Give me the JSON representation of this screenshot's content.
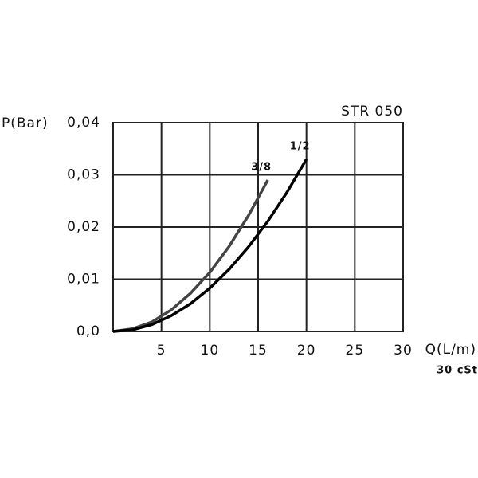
{
  "chart_data": {
    "type": "line",
    "title": "STR 050",
    "subtitle": "30 cSt",
    "y_label": "P(Bar)",
    "x_label": "Q(L/m)",
    "xlim": [
      0,
      30
    ],
    "xticks": [
      5,
      10,
      15,
      20,
      25,
      30
    ],
    "ylim": [
      0,
      0.04
    ],
    "yticks": [
      {
        "value": 0,
        "label": "0,0"
      },
      {
        "value": 0.01,
        "label": "0,01"
      },
      {
        "value": 0.02,
        "label": "0,02"
      },
      {
        "value": 0.03,
        "label": "0,03"
      },
      {
        "value": 0.04,
        "label": "0,04"
      }
    ],
    "grid": true,
    "series": [
      {
        "name": "3/8",
        "color": "#444444",
        "x": [
          0,
          2,
          4,
          6,
          8,
          10,
          12,
          14,
          16
        ],
        "values": [
          0,
          0.0005,
          0.0018,
          0.0041,
          0.0073,
          0.0113,
          0.0163,
          0.0222,
          0.029
        ]
      },
      {
        "name": "1/2",
        "color": "#000000",
        "x": [
          0,
          2,
          4,
          6,
          8,
          10,
          12,
          14,
          16,
          18,
          20
        ],
        "values": [
          0,
          0.0003,
          0.0013,
          0.003,
          0.0053,
          0.0083,
          0.0119,
          0.0162,
          0.0211,
          0.0267,
          0.033
        ]
      }
    ]
  }
}
